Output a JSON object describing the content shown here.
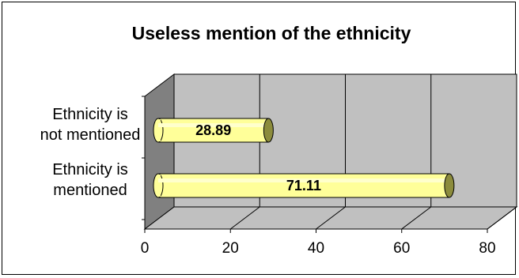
{
  "chart_data": {
    "type": "bar",
    "orientation": "horizontal",
    "title": "Useless mention of the ethnicity",
    "categories": [
      [
        "Ethnicity is",
        "not mentioned"
      ],
      [
        "Ethnicity is",
        "mentioned"
      ]
    ],
    "values": [
      28.89,
      71.11
    ],
    "data_labels": [
      "28.89",
      "71.11"
    ],
    "xlim": [
      0,
      80
    ],
    "xticks": [
      0,
      20,
      40,
      60,
      80
    ],
    "xtick_labels": [
      "0",
      "20",
      "40",
      "60",
      "80"
    ],
    "grid": true,
    "legend": "none",
    "style": "3d-cylinder",
    "colors": {
      "bar_fill": "#ffff99",
      "bar_edge": "#000000",
      "bar_cap": "#8c8c3c",
      "wall": "#c0c0c0",
      "side_wall": "#808080",
      "floor": "#c0c0c0"
    }
  }
}
